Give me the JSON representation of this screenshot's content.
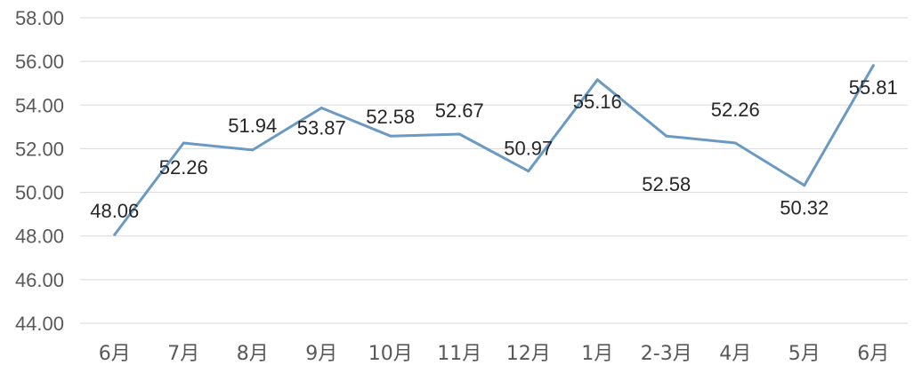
{
  "chart_data": {
    "type": "line",
    "categories": [
      "6月",
      "7月",
      "8月",
      "9月",
      "10月",
      "11月",
      "12月",
      "1月",
      "2-3月",
      "4月",
      "5月",
      "6月"
    ],
    "series": [
      {
        "values": [
          48.06,
          52.26,
          51.94,
          53.87,
          52.58,
          52.67,
          50.97,
          55.16,
          52.58,
          52.26,
          50.32,
          55.81
        ]
      }
    ],
    "data_labels": [
      "48.06",
      "52.26",
      "51.94",
      "53.87",
      "52.58",
      "52.67",
      "50.97",
      "55.16",
      "52.58",
      "52.26",
      "50.32",
      "55.81"
    ],
    "y_ticks": [
      "58.00",
      "56.00",
      "54.00",
      "52.00",
      "50.00",
      "48.00",
      "46.00",
      "44.00"
    ],
    "ylim": [
      44,
      58
    ],
    "grid": true,
    "legend": "none",
    "title": "",
    "xlabel": "",
    "ylabel": "",
    "line_color": "#6a9ac4"
  }
}
